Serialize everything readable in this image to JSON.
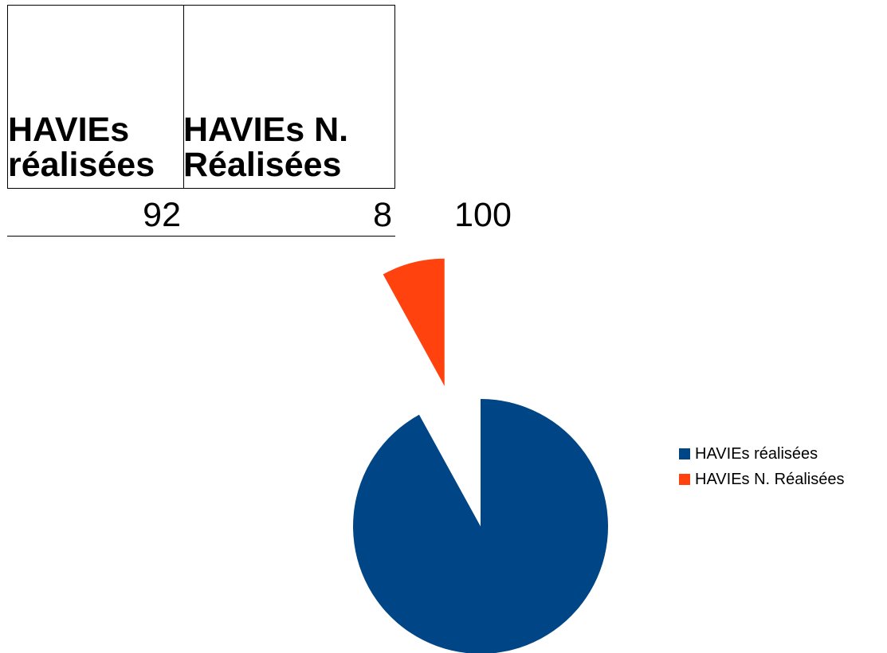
{
  "table": {
    "headers": [
      [
        "HAVIEs",
        "réalisées"
      ],
      [
        "HAVIEs N.",
        "Réalisées"
      ]
    ],
    "values": [
      "92",
      "8"
    ],
    "total": "100"
  },
  "colors": {
    "series_1": "#004586",
    "series_2": "#ff420e"
  },
  "chart_data": {
    "type": "pie",
    "categories": [
      "HAVIEs réalisées",
      "HAVIEs N. Réalisées"
    ],
    "values": [
      92,
      8
    ],
    "exploded": [
      false,
      true
    ],
    "title": "",
    "legend_position": "right"
  }
}
